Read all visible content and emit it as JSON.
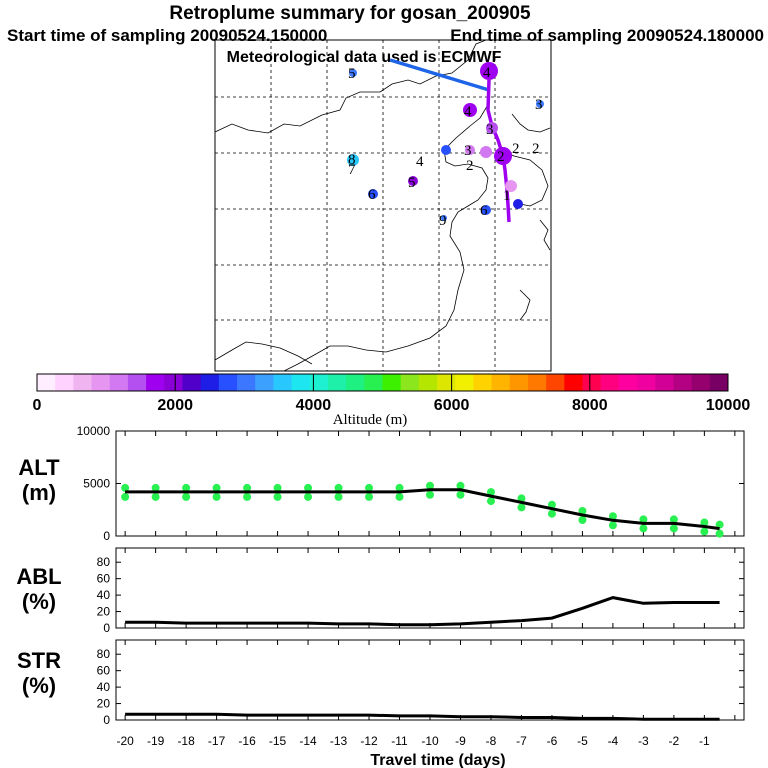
{
  "header": {
    "title": "Retroplume summary for gosan_200905",
    "start_label": "Start time of sampling 20090524.150000",
    "end_label": "End time of sampling 20090524.180000",
    "met_label": "Meteorological data used is ECMWF"
  },
  "colorbar": {
    "label": "Altitude (m)",
    "ticks": [
      "0",
      "2000",
      "4000",
      "6000",
      "8000",
      "10000"
    ],
    "colors": [
      "#ffeeff",
      "#ffd2ff",
      "#f0b4f0",
      "#e696f0",
      "#d278f0",
      "#b450f0",
      "#a000f0",
      "#8c00d8",
      "#5000c8",
      "#1e1ee6",
      "#2850ff",
      "#3c78ff",
      "#3ca0ff",
      "#28c8ff",
      "#1ee6f0",
      "#1ef0d2",
      "#1ef0aa",
      "#1ef082",
      "#28f050",
      "#3cf000",
      "#8ce61e",
      "#b4e600",
      "#dce600",
      "#f0f000",
      "#ffd200",
      "#ffb400",
      "#ff9600",
      "#ff7800",
      "#ff4600",
      "#ff0000",
      "#ff0050",
      "#ff0080",
      "#ff00a0",
      "#f000a0",
      "#d20096",
      "#b40082",
      "#96006e",
      "#780064"
    ]
  },
  "map": {
    "trajectory_labels": [
      "4",
      "4",
      "3",
      "2",
      "2",
      "2",
      "1",
      "3",
      "2",
      "4",
      "5",
      "6",
      "6",
      "7",
      "8",
      "9",
      "5",
      "3"
    ]
  },
  "chart_data": [
    {
      "type": "line",
      "panel": "ALT",
      "ylabel_line1": "ALT",
      "ylabel_line2": "(m)",
      "x": [
        -20,
        -19,
        -18,
        -17,
        -16,
        -15,
        -14,
        -13,
        -12,
        -11,
        -10,
        -9,
        -8,
        -7,
        -6,
        -5,
        -4,
        -3,
        -2,
        -1,
        -0.5
      ],
      "y": [
        4200,
        4200,
        4200,
        4200,
        4200,
        4200,
        4200,
        4200,
        4200,
        4200,
        4400,
        4400,
        3800,
        3200,
        2600,
        2000,
        1500,
        1200,
        1200,
        900,
        700
      ],
      "ylim": [
        0,
        10000
      ],
      "yticks": [
        "0",
        "5000",
        "10000"
      ],
      "xlim": [
        -20,
        0
      ]
    },
    {
      "type": "line",
      "panel": "ABL",
      "ylabel_line1": "ABL",
      "ylabel_line2": "(%)",
      "x": [
        -20,
        -19,
        -18,
        -17,
        -16,
        -15,
        -14,
        -13,
        -12,
        -11,
        -10,
        -9,
        -8,
        -7,
        -6,
        -5,
        -4,
        -3,
        -2,
        -1,
        -0.5
      ],
      "y": [
        7,
        7,
        6,
        6,
        6,
        6,
        6,
        5,
        5,
        4,
        4,
        5,
        7,
        9,
        12,
        24,
        37,
        30,
        31,
        31,
        31
      ],
      "ylim": [
        0,
        90
      ],
      "yticks": [
        "0",
        "20",
        "40",
        "60",
        "80"
      ],
      "xlim": [
        -20,
        0
      ]
    },
    {
      "type": "line",
      "panel": "STR",
      "ylabel_line1": "STR",
      "ylabel_line2": "(%)",
      "x": [
        -20,
        -19,
        -18,
        -17,
        -16,
        -15,
        -14,
        -13,
        -12,
        -11,
        -10,
        -9,
        -8,
        -7,
        -6,
        -5,
        -4,
        -3,
        -2,
        -1,
        -0.5
      ],
      "y": [
        7,
        7,
        7,
        7,
        6,
        6,
        6,
        6,
        6,
        5,
        5,
        4,
        4,
        3,
        3,
        2,
        2,
        1,
        1,
        1,
        1
      ],
      "ylim": [
        0,
        90
      ],
      "yticks": [
        "0",
        "20",
        "40",
        "60",
        "80"
      ],
      "xlim": [
        -20,
        0
      ],
      "xlabel": "Travel time (days)",
      "xticks": [
        "-20",
        "-19",
        "-18",
        "-17",
        "-16",
        "-15",
        "-14",
        "-13",
        "-12",
        "-11",
        "-10",
        "-9",
        "-8",
        "-7",
        "-6",
        "-5",
        "-4",
        "-3",
        "-2",
        "-1"
      ]
    }
  ]
}
